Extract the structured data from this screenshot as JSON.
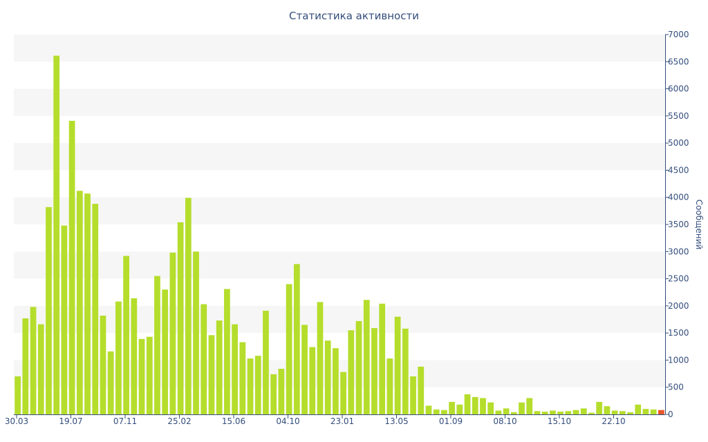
{
  "chart_data": {
    "type": "bar",
    "title": "Статистика активности",
    "ylabel": "Сообщений",
    "xlabel": "",
    "ylim": [
      0,
      7000
    ],
    "yticks": [
      0,
      500,
      1000,
      1500,
      2000,
      2500,
      3000,
      3500,
      4000,
      4500,
      5000,
      5500,
      6000,
      6500,
      7000
    ],
    "x_tick_labels": [
      "30.03",
      "19.07",
      "07.11",
      "25.02",
      "15.06",
      "04.10",
      "23.01",
      "13.05",
      "01.09",
      "08.10",
      "15.10",
      "22.10"
    ],
    "y_axis_side": "right",
    "grid": "alternating horizontal bands",
    "colors": {
      "bar": "#b5dd2c",
      "last_bar": "#e8562a",
      "text": "#334d7c",
      "band": "#f6f6f6",
      "axis": "#334d7c"
    },
    "values": [
      700,
      1770,
      1980,
      1660,
      3820,
      6610,
      3480,
      5410,
      4120,
      4070,
      3880,
      1820,
      1160,
      2080,
      2920,
      2140,
      1390,
      1430,
      2550,
      2300,
      2980,
      3540,
      3990,
      3000,
      2030,
      1460,
      1730,
      2310,
      1660,
      1330,
      1030,
      1080,
      1910,
      740,
      840,
      2400,
      2770,
      1650,
      1240,
      2070,
      1360,
      1220,
      780,
      1550,
      1720,
      2110,
      1590,
      2040,
      1030,
      1800,
      1580,
      700,
      880,
      160,
      90,
      80,
      230,
      180,
      370,
      320,
      300,
      220,
      70,
      110,
      40,
      220,
      300,
      60,
      50,
      70,
      50,
      60,
      80,
      110,
      30,
      230,
      150,
      70,
      60,
      40,
      180,
      100,
      90,
      80
    ],
    "highlight_last": true
  }
}
